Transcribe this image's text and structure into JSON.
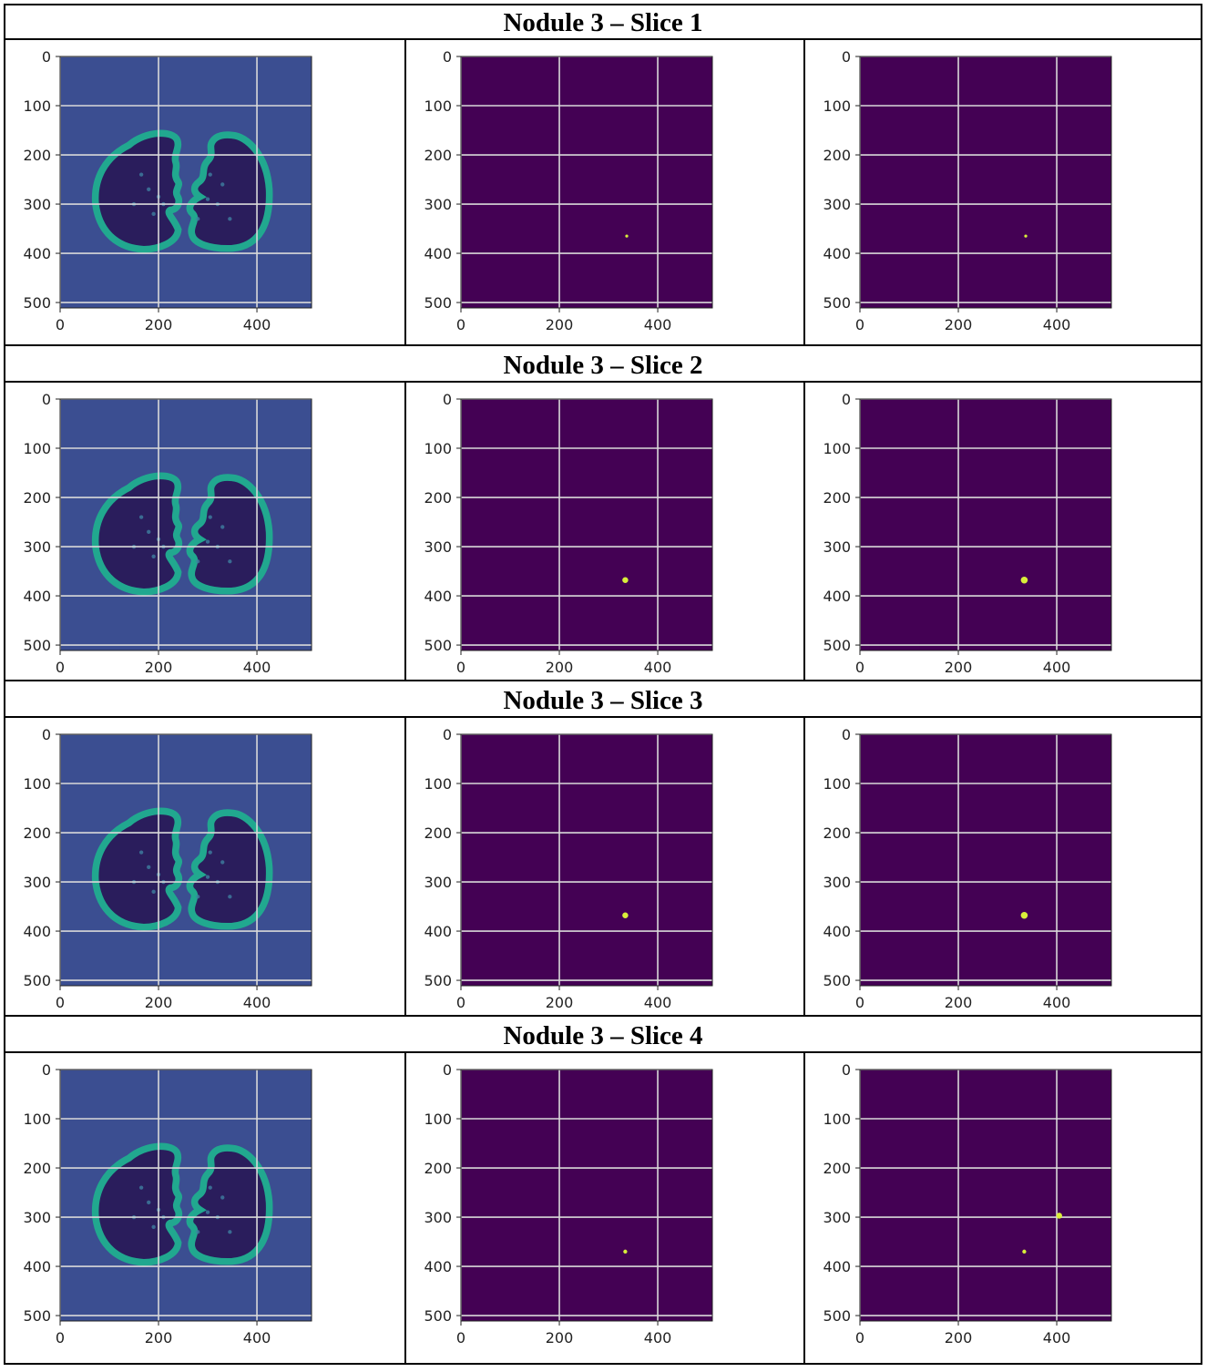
{
  "figure": {
    "rows": [
      {
        "title": "Nodule 3 – Slice 1",
        "panels": [
          {
            "kind": "ct-slice"
          },
          {
            "kind": "mask",
            "spots": [
              {
                "x": 337,
                "y": 365,
                "r": 3
              }
            ]
          },
          {
            "kind": "mask",
            "spots": [
              {
                "x": 337,
                "y": 365,
                "r": 3
              }
            ]
          }
        ]
      },
      {
        "title": "Nodule 3 – Slice 2",
        "panels": [
          {
            "kind": "ct-slice"
          },
          {
            "kind": "mask",
            "spots": [
              {
                "x": 334,
                "y": 368,
                "r": 6
              }
            ]
          },
          {
            "kind": "mask",
            "spots": [
              {
                "x": 334,
                "y": 368,
                "r": 7
              }
            ]
          }
        ]
      },
      {
        "title": "Nodule 3 – Slice 3",
        "panels": [
          {
            "kind": "ct-slice"
          },
          {
            "kind": "mask",
            "spots": [
              {
                "x": 334,
                "y": 368,
                "r": 6
              }
            ]
          },
          {
            "kind": "mask",
            "spots": [
              {
                "x": 334,
                "y": 368,
                "r": 7
              }
            ]
          }
        ]
      },
      {
        "title": "Nodule 3 – Slice 4",
        "panels": [
          {
            "kind": "ct-slice"
          },
          {
            "kind": "mask",
            "spots": [
              {
                "x": 334,
                "y": 370,
                "r": 4
              }
            ]
          },
          {
            "kind": "mask",
            "spots": [
              {
                "x": 334,
                "y": 370,
                "r": 4
              },
              {
                "x": 405,
                "y": 297,
                "r": 6
              }
            ]
          }
        ]
      }
    ],
    "axes": {
      "xlim": [
        0,
        511
      ],
      "ylim": [
        0,
        511
      ],
      "xticks": [
        0,
        200,
        400
      ],
      "yticks": [
        0,
        100,
        200,
        300,
        400,
        500
      ],
      "grid": true
    },
    "colors": {
      "mask_background": "#440154",
      "ct_background": "#3b4e91",
      "ct_lung": "#2a1d5c",
      "ct_wall": "#21a88f",
      "nodule": "#d9ef3a",
      "grid": "#d9d9d9"
    }
  }
}
